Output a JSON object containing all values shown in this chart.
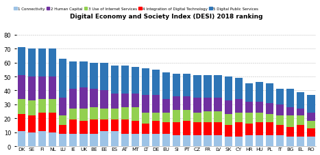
{
  "title": "Digital Economy and Society Index (DESI) 2018 ranking",
  "countries": [
    "DK",
    "SE",
    "FI",
    "NL",
    "LU",
    "IE",
    "UK",
    "BE",
    "EE",
    "ES",
    "AT",
    "MT",
    "LT",
    "DE",
    "EU",
    "SI",
    "PT",
    "CZ",
    "FR",
    "LV",
    "SK",
    "CY",
    "HR",
    "HU",
    "PL",
    "IT",
    "BG",
    "EL",
    "RO"
  ],
  "series_order": [
    "1 Connectivity",
    "4 Integration of Digital Technology",
    "3 Use of Internet Services",
    "2 Human Capital",
    "5 Digital Public Services"
  ],
  "series": {
    "1 Connectivity": [
      11,
      10,
      11,
      10,
      9,
      9,
      9,
      9,
      11,
      11,
      9,
      9,
      9,
      9,
      9,
      8,
      8,
      8,
      8,
      8,
      7,
      7,
      8,
      8,
      8,
      8,
      7,
      7,
      7
    ],
    "4 Integration of Digital Technology": [
      12,
      12,
      13,
      14,
      6,
      10,
      9,
      10,
      8,
      8,
      10,
      9,
      7,
      9,
      8,
      9,
      10,
      9,
      9,
      9,
      8,
      10,
      8,
      9,
      9,
      7,
      7,
      8,
      6
    ],
    "3 Use of Internet Services": [
      11,
      11,
      10,
      10,
      7,
      8,
      9,
      9,
      8,
      8,
      9,
      10,
      8,
      6,
      7,
      9,
      8,
      7,
      8,
      8,
      8,
      7,
      8,
      7,
      6,
      7,
      8,
      7,
      5
    ],
    "2 Human Capital": [
      17,
      17,
      16,
      16,
      13,
      14,
      15,
      13,
      13,
      11,
      10,
      10,
      13,
      13,
      10,
      10,
      10,
      11,
      10,
      10,
      10,
      10,
      8,
      8,
      8,
      8,
      6,
      5,
      6
    ],
    "5 Digital Public Services": [
      20,
      20,
      20,
      20,
      28,
      20,
      19,
      19,
      20,
      20,
      20,
      19,
      19,
      18,
      19,
      16,
      16,
      16,
      16,
      16,
      17,
      15,
      13,
      14,
      14,
      11,
      13,
      12,
      13
    ]
  },
  "colors": {
    "1 Connectivity": "#9DC3E6",
    "2 Human Capital": "#7030A0",
    "3 Use of Internet Services": "#92D050",
    "4 Integration of Digital Technology": "#FF0000",
    "5 Digital Public Services": "#2E75B6"
  },
  "legend_order": [
    "1 Connectivity",
    "2 Human Capital",
    "3 Use of Internet Services",
    "4 Integration of Digital Technology",
    "5 Digital Public Services"
  ],
  "ylim": [
    0,
    80
  ],
  "yticks": [
    0,
    10,
    20,
    30,
    40,
    50,
    60,
    70,
    80
  ],
  "background_color": "#FFFFFF"
}
